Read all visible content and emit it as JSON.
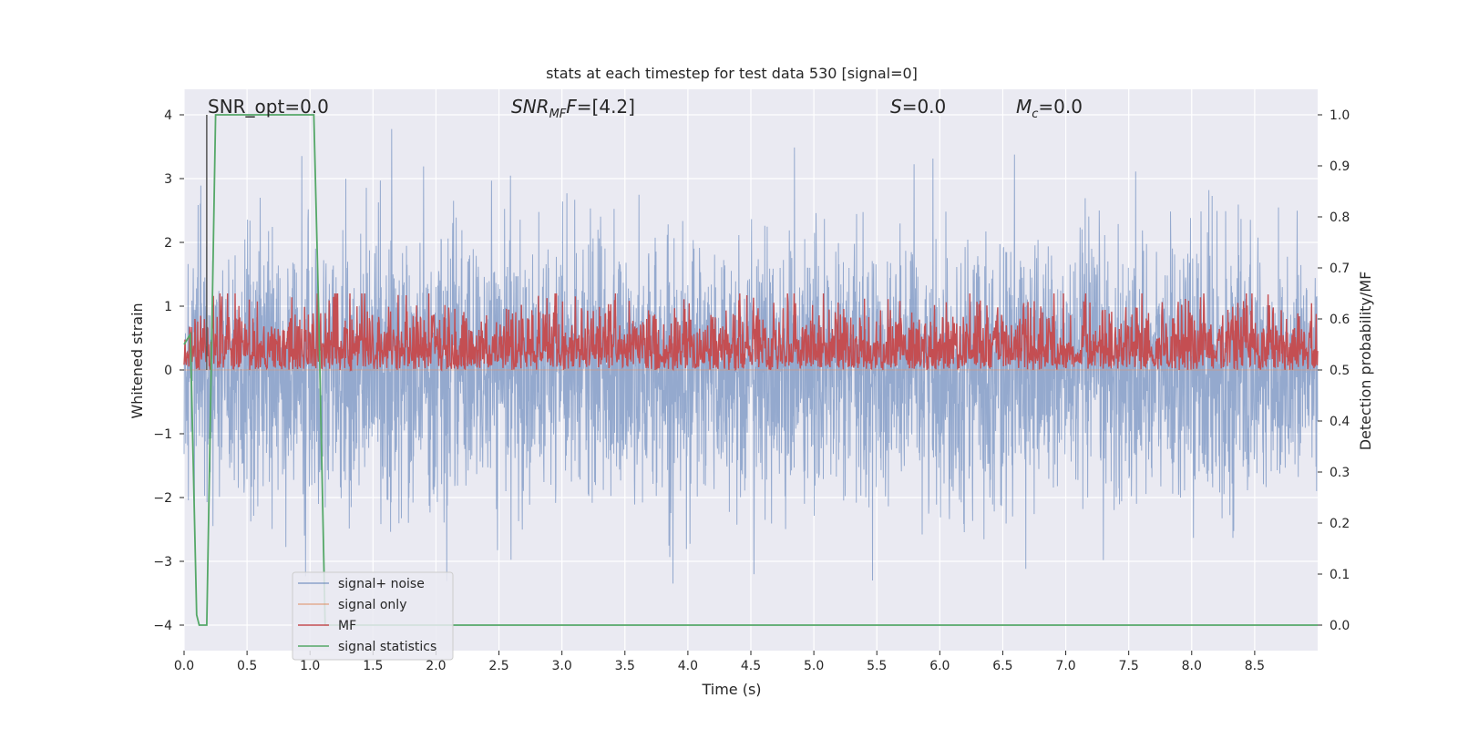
{
  "chart_data": {
    "type": "line",
    "title": "stats at each timestep for test data 530 [signal=0]",
    "xlabel": "Time (s)",
    "ylabel": "Whitened strain",
    "ylabel_right": "Detection probability/MF",
    "xlim": [
      0,
      9.0
    ],
    "ylim": [
      -4.4,
      4.4
    ],
    "ylim_right": [
      -0.05,
      1.05
    ],
    "x_ticks": [
      0.0,
      0.5,
      1.0,
      1.5,
      2.0,
      2.5,
      3.0,
      3.5,
      4.0,
      4.5,
      5.0,
      5.5,
      6.0,
      6.5,
      7.0,
      7.5,
      8.0,
      8.5
    ],
    "y_ticks": [
      -4,
      -3,
      -2,
      -1,
      0,
      1,
      2,
      3,
      4
    ],
    "y_ticks_right": [
      0.0,
      0.1,
      0.2,
      0.3,
      0.4,
      0.5,
      0.6,
      0.7,
      0.8,
      0.9,
      1.0
    ],
    "grid": true,
    "legend_position": "lower-left",
    "annotations": {
      "snr_opt": "SNR_opt=0.0",
      "snr_mf_base": "SNR",
      "snr_mf_sub": "MF",
      "snr_mf_rest": "=[4.2]",
      "s_label": "S",
      "s_value": "=0.0",
      "mc_base": "M",
      "mc_sub": "c",
      "mc_value": "=0.0"
    },
    "series": [
      {
        "name": "signal+ noise",
        "color": "#4c72b0",
        "kind": "noise",
        "typical_amplitude": 1.6,
        "max_abs": 4.0
      },
      {
        "name": "signal only",
        "color": "#dd8452",
        "kind": "flat",
        "values": []
      },
      {
        "name": "MF",
        "color": "#c44e52",
        "kind": "mf",
        "axis": "right",
        "range": [
          0.5,
          0.63
        ]
      },
      {
        "name": "signal statistics",
        "color": "#55a868",
        "axis": "right",
        "x": [
          0.0,
          0.05,
          0.1,
          0.12,
          0.18,
          0.25,
          0.3,
          1.0,
          1.03,
          1.07,
          1.12,
          1.5,
          9.0
        ],
        "y": [
          0.55,
          0.57,
          0.02,
          0.0,
          0.0,
          1.0,
          1.0,
          1.0,
          1.0,
          0.6,
          0.0,
          0.0,
          0.0
        ]
      }
    ],
    "vertical_marker": {
      "x": 0.18,
      "color": "#555555"
    }
  }
}
